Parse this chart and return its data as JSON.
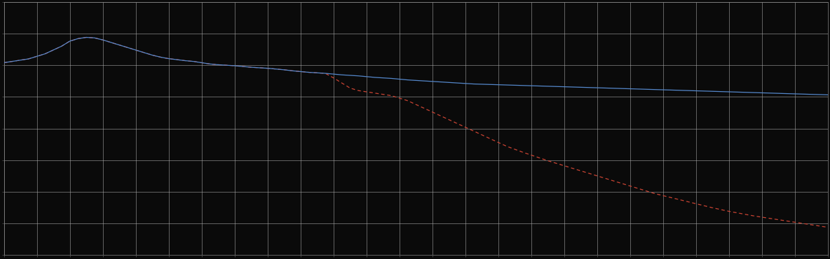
{
  "background_color": "#0a0a0a",
  "plot_bg_color": "#0a0a0a",
  "grid_color": "#aaaaaa",
  "figure_size": [
    12.09,
    3.78
  ],
  "dpi": 100,
  "xlim": [
    0,
    100
  ],
  "ylim": [
    0,
    10
  ],
  "blue_line_color": "#5588cc",
  "red_line_color": "#cc4433",
  "grid_linewidth": 0.4,
  "line_linewidth": 0.9,
  "x_grid_major": 4.0,
  "y_grid_major": 1.25,
  "blue_x": [
    0,
    1,
    2,
    3,
    4,
    5,
    6,
    7,
    8,
    9,
    10,
    11,
    12,
    13,
    14,
    15,
    16,
    17,
    18,
    19,
    20,
    21,
    22,
    23,
    24,
    25,
    26,
    27,
    28,
    29,
    30,
    31,
    32,
    33,
    34,
    35,
    36,
    37,
    38,
    39,
    40,
    41,
    42,
    43,
    44,
    45,
    46,
    47,
    48,
    49,
    50,
    51,
    52,
    53,
    54,
    55,
    56,
    57,
    58,
    59,
    60,
    61,
    62,
    63,
    64,
    65,
    66,
    67,
    68,
    69,
    70,
    71,
    72,
    73,
    74,
    75,
    76,
    77,
    78,
    79,
    80,
    81,
    82,
    83,
    84,
    85,
    86,
    87,
    88,
    89,
    90,
    91,
    92,
    93,
    94,
    95,
    96,
    97,
    98,
    99,
    100
  ],
  "blue_y": [
    7.6,
    7.65,
    7.7,
    7.75,
    7.85,
    7.95,
    8.1,
    8.25,
    8.45,
    8.55,
    8.6,
    8.58,
    8.5,
    8.4,
    8.3,
    8.2,
    8.1,
    8.0,
    7.9,
    7.82,
    7.76,
    7.72,
    7.68,
    7.65,
    7.6,
    7.55,
    7.52,
    7.5,
    7.48,
    7.45,
    7.42,
    7.4,
    7.38,
    7.35,
    7.32,
    7.28,
    7.25,
    7.22,
    7.2,
    7.18,
    7.15,
    7.12,
    7.1,
    7.08,
    7.05,
    7.02,
    7.0,
    6.98,
    6.95,
    6.92,
    6.9,
    6.88,
    6.86,
    6.84,
    6.82,
    6.8,
    6.78,
    6.76,
    6.75,
    6.74,
    6.73,
    6.72,
    6.71,
    6.7,
    6.69,
    6.68,
    6.67,
    6.66,
    6.65,
    6.64,
    6.63,
    6.62,
    6.61,
    6.6,
    6.59,
    6.58,
    6.57,
    6.56,
    6.55,
    6.54,
    6.53,
    6.52,
    6.51,
    6.5,
    6.49,
    6.48,
    6.47,
    6.46,
    6.45,
    6.44,
    6.43,
    6.42,
    6.41,
    6.4,
    6.39,
    6.38,
    6.37,
    6.36,
    6.35,
    6.34,
    6.33
  ],
  "red_x": [
    0,
    1,
    2,
    3,
    4,
    5,
    6,
    7,
    8,
    9,
    10,
    11,
    12,
    13,
    14,
    15,
    16,
    17,
    18,
    19,
    20,
    21,
    22,
    23,
    24,
    25,
    26,
    27,
    28,
    29,
    30,
    31,
    32,
    33,
    34,
    35,
    36,
    37,
    38,
    39,
    40,
    41,
    42,
    43,
    44,
    45,
    46,
    47,
    48,
    49,
    50,
    51,
    52,
    53,
    54,
    55,
    56,
    57,
    58,
    59,
    60,
    61,
    62,
    63,
    64,
    65,
    66,
    67,
    68,
    69,
    70,
    71,
    72,
    73,
    74,
    75,
    76,
    77,
    78,
    79,
    80,
    81,
    82,
    83,
    84,
    85,
    86,
    87,
    88,
    89,
    90,
    91,
    92,
    93,
    94,
    95,
    96,
    97,
    98,
    99,
    100
  ],
  "red_y": [
    7.6,
    7.65,
    7.7,
    7.75,
    7.85,
    7.95,
    8.1,
    8.25,
    8.45,
    8.55,
    8.6,
    8.58,
    8.5,
    8.4,
    8.3,
    8.2,
    8.1,
    8.0,
    7.9,
    7.82,
    7.76,
    7.72,
    7.68,
    7.65,
    7.6,
    7.55,
    7.52,
    7.5,
    7.48,
    7.45,
    7.42,
    7.4,
    7.38,
    7.35,
    7.32,
    7.28,
    7.25,
    7.22,
    7.2,
    7.18,
    7.0,
    6.8,
    6.6,
    6.5,
    6.45,
    6.4,
    6.35,
    6.3,
    6.2,
    6.1,
    5.95,
    5.8,
    5.65,
    5.5,
    5.35,
    5.2,
    5.05,
    4.9,
    4.75,
    4.6,
    4.45,
    4.3,
    4.18,
    4.06,
    3.95,
    3.84,
    3.73,
    3.63,
    3.53,
    3.43,
    3.33,
    3.23,
    3.13,
    3.03,
    2.93,
    2.83,
    2.73,
    2.63,
    2.53,
    2.43,
    2.35,
    2.27,
    2.19,
    2.11,
    2.03,
    1.95,
    1.87,
    1.8,
    1.73,
    1.67,
    1.61,
    1.55,
    1.5,
    1.45,
    1.4,
    1.35,
    1.3,
    1.25,
    1.2,
    1.15,
    1.1
  ]
}
